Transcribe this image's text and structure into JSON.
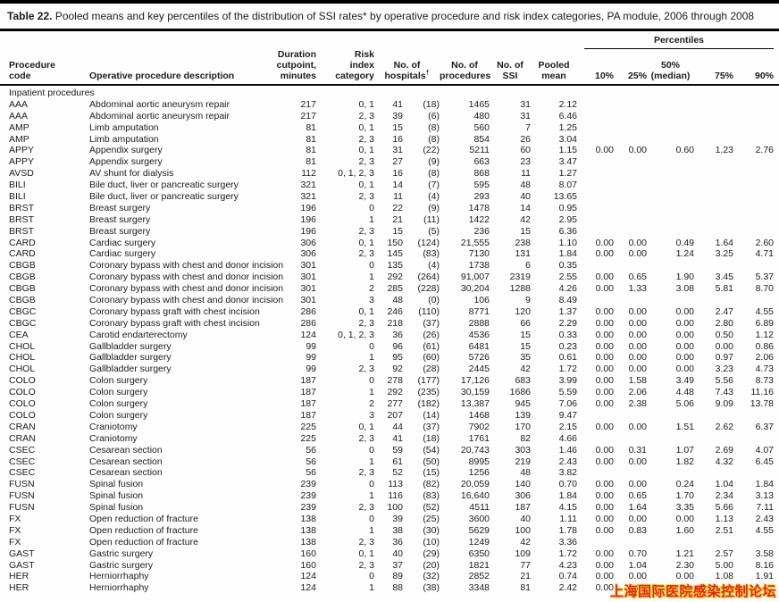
{
  "title": {
    "label": "Table 22.",
    "text": "Pooled means and key percentiles of the distribution of SSI rates* by operative procedure and risk index categories, PA module, 2006 through 2008"
  },
  "header": {
    "percentiles_group": "Percentiles",
    "procedure_code": "Procedure\ncode",
    "description": "Operative procedure description",
    "duration": "Duration\ncutpoint,\nminutes",
    "risk": "Risk\nindex\ncategory",
    "hospitals_line1": "No. of",
    "hospitals_line2": "hospitals",
    "hospitals_dagger": "†",
    "procedures": "No. of\nprocedures",
    "ssi": "No. of\nSSI",
    "pooled_mean": "Pooled\nmean",
    "p10": "10%",
    "p25": "25%",
    "p50": "50%\n(median)",
    "p75": "75%",
    "p90": "90%"
  },
  "section_label": "Inpatient procedures",
  "rows": [
    [
      "AAA",
      "Abdominal aortic aneurysm repair",
      "217",
      "0, 1",
      "41",
      "(18)",
      "1465",
      "31",
      "2.12",
      "",
      "",
      "",
      "",
      ""
    ],
    [
      "AAA",
      "Abdominal aortic aneurysm repair",
      "217",
      "2, 3",
      "39",
      "(6)",
      "480",
      "31",
      "6.46",
      "",
      "",
      "",
      "",
      ""
    ],
    [
      "AMP",
      "Limb amputation",
      "81",
      "0, 1",
      "15",
      "(8)",
      "560",
      "7",
      "1.25",
      "",
      "",
      "",
      "",
      ""
    ],
    [
      "AMP",
      "Limb amputation",
      "81",
      "2, 3",
      "16",
      "(8)",
      "854",
      "26",
      "3.04",
      "",
      "",
      "",
      "",
      ""
    ],
    [
      "APPY",
      "Appendix surgery",
      "81",
      "0, 1",
      "31",
      "(22)",
      "5211",
      "60",
      "1.15",
      "0.00",
      "0.00",
      "0.60",
      "1.23",
      "2.76"
    ],
    [
      "APPY",
      "Appendix surgery",
      "81",
      "2, 3",
      "27",
      "(9)",
      "663",
      "23",
      "3.47",
      "",
      "",
      "",
      "",
      ""
    ],
    [
      "AVSD",
      "AV shunt for dialysis",
      "112",
      "0, 1, 2, 3",
      "16",
      "(8)",
      "868",
      "11",
      "1.27",
      "",
      "",
      "",
      "",
      ""
    ],
    [
      "BILI",
      "Bile duct, liver or pancreatic surgery",
      "321",
      "0, 1",
      "14",
      "(7)",
      "595",
      "48",
      "8.07",
      "",
      "",
      "",
      "",
      ""
    ],
    [
      "BILI",
      "Bile duct, liver or pancreatic surgery",
      "321",
      "2, 3",
      "11",
      "(4)",
      "293",
      "40",
      "13.65",
      "",
      "",
      "",
      "",
      ""
    ],
    [
      "BRST",
      "Breast surgery",
      "196",
      "0",
      "22",
      "(9)",
      "1478",
      "14",
      "0.95",
      "",
      "",
      "",
      "",
      ""
    ],
    [
      "BRST",
      "Breast surgery",
      "196",
      "1",
      "21",
      "(11)",
      "1422",
      "42",
      "2.95",
      "",
      "",
      "",
      "",
      ""
    ],
    [
      "BRST",
      "Breast surgery",
      "196",
      "2, 3",
      "15",
      "(5)",
      "236",
      "15",
      "6.36",
      "",
      "",
      "",
      "",
      ""
    ],
    [
      "CARD",
      "Cardiac surgery",
      "306",
      "0, 1",
      "150",
      "(124)",
      "21,555",
      "238",
      "1.10",
      "0.00",
      "0.00",
      "0.49",
      "1.64",
      "2.60"
    ],
    [
      "CARD",
      "Cardiac surgery",
      "306",
      "2, 3",
      "145",
      "(83)",
      "7130",
      "131",
      "1.84",
      "0.00",
      "0.00",
      "1.24",
      "3.25",
      "4.71"
    ],
    [
      "CBGB",
      "Coronary bypass with chest and donor incision",
      "301",
      "0",
      "135",
      "(4)",
      "1738",
      "6",
      "0.35",
      "",
      "",
      "",
      "",
      ""
    ],
    [
      "CBGB",
      "Coronary bypass with chest and donor incision",
      "301",
      "1",
      "292",
      "(264)",
      "91,007",
      "2319",
      "2.55",
      "0.00",
      "0.65",
      "1.90",
      "3.45",
      "5.37"
    ],
    [
      "CBGB",
      "Coronary bypass with chest and donor incision",
      "301",
      "2",
      "285",
      "(228)",
      "30,204",
      "1288",
      "4.26",
      "0.00",
      "1.33",
      "3.08",
      "5.81",
      "8.70"
    ],
    [
      "CBGB",
      "Coronary bypass with chest and donor incision",
      "301",
      "3",
      "48",
      "(0)",
      "106",
      "9",
      "8.49",
      "",
      "",
      "",
      "",
      ""
    ],
    [
      "CBGC",
      "Coronary bypass graft with chest incision",
      "286",
      "0, 1",
      "246",
      "(110)",
      "8771",
      "120",
      "1.37",
      "0.00",
      "0.00",
      "0.00",
      "2.47",
      "4.55"
    ],
    [
      "CBGC",
      "Coronary bypass graft with chest incision",
      "286",
      "2, 3",
      "218",
      "(37)",
      "2888",
      "66",
      "2.29",
      "0.00",
      "0.00",
      "0.00",
      "2.80",
      "6.89"
    ],
    [
      "CEA",
      "Carotid endarterectomy",
      "124",
      "0, 1, 2, 3",
      "36",
      "(26)",
      "4536",
      "15",
      "0.33",
      "0.00",
      "0.00",
      "0.00",
      "0.50",
      "1.12"
    ],
    [
      "CHOL",
      "Gallbladder surgery",
      "99",
      "0",
      "96",
      "(61)",
      "6481",
      "15",
      "0.23",
      "0.00",
      "0.00",
      "0.00",
      "0.00",
      "0.86"
    ],
    [
      "CHOL",
      "Gallbladder surgery",
      "99",
      "1",
      "95",
      "(60)",
      "5726",
      "35",
      "0.61",
      "0.00",
      "0.00",
      "0.00",
      "0.97",
      "2.06"
    ],
    [
      "CHOL",
      "Gallbladder surgery",
      "99",
      "2, 3",
      "92",
      "(28)",
      "2445",
      "42",
      "1.72",
      "0.00",
      "0.00",
      "0.00",
      "3.23",
      "4.73"
    ],
    [
      "COLO",
      "Colon surgery",
      "187",
      "0",
      "278",
      "(177)",
      "17,126",
      "683",
      "3.99",
      "0.00",
      "1.58",
      "3.49",
      "5.56",
      "8.73"
    ],
    [
      "COLO",
      "Colon surgery",
      "187",
      "1",
      "292",
      "(235)",
      "30,159",
      "1686",
      "5.59",
      "0.00",
      "2.06",
      "4.48",
      "7.43",
      "11.16"
    ],
    [
      "COLO",
      "Colon surgery",
      "187",
      "2",
      "277",
      "(182)",
      "13,387",
      "945",
      "7.06",
      "0.00",
      "2.38",
      "5.06",
      "9.09",
      "13.78"
    ],
    [
      "COLO",
      "Colon surgery",
      "187",
      "3",
      "207",
      "(14)",
      "1468",
      "139",
      "9.47",
      "",
      "",
      "",
      "",
      ""
    ],
    [
      "CRAN",
      "Craniotomy",
      "225",
      "0, 1",
      "44",
      "(37)",
      "7902",
      "170",
      "2.15",
      "0.00",
      "0.00",
      "1.51",
      "2.62",
      "6.37"
    ],
    [
      "CRAN",
      "Craniotomy",
      "225",
      "2, 3",
      "41",
      "(18)",
      "1761",
      "82",
      "4.66",
      "",
      "",
      "",
      "",
      ""
    ],
    [
      "CSEC",
      "Cesarean section",
      "56",
      "0",
      "59",
      "(54)",
      "20,743",
      "303",
      "1.46",
      "0.00",
      "0.31",
      "1.07",
      "2.69",
      "4.07"
    ],
    [
      "CSEC",
      "Cesarean section",
      "56",
      "1",
      "61",
      "(50)",
      "8995",
      "219",
      "2.43",
      "0.00",
      "0.00",
      "1.82",
      "4.32",
      "6.45"
    ],
    [
      "CSEC",
      "Cesarean section",
      "56",
      "2, 3",
      "52",
      "(15)",
      "1256",
      "48",
      "3.82",
      "",
      "",
      "",
      "",
      ""
    ],
    [
      "FUSN",
      "Spinal fusion",
      "239",
      "0",
      "113",
      "(82)",
      "20,059",
      "140",
      "0.70",
      "0.00",
      "0.00",
      "0.24",
      "1.04",
      "1.84"
    ],
    [
      "FUSN",
      "Spinal fusion",
      "239",
      "1",
      "116",
      "(83)",
      "16,640",
      "306",
      "1.84",
      "0.00",
      "0.65",
      "1.70",
      "2.34",
      "3.13"
    ],
    [
      "FUSN",
      "Spinal fusion",
      "239",
      "2, 3",
      "100",
      "(52)",
      "4511",
      "187",
      "4.15",
      "0.00",
      "1.64",
      "3.35",
      "5.66",
      "7.11"
    ],
    [
      "FX",
      "Open reduction of fracture",
      "138",
      "0",
      "39",
      "(25)",
      "3600",
      "40",
      "1.11",
      "0.00",
      "0.00",
      "0.00",
      "1.13",
      "2.43"
    ],
    [
      "FX",
      "Open reduction of fracture",
      "138",
      "1",
      "38",
      "(30)",
      "5629",
      "100",
      "1.78",
      "0.00",
      "0.83",
      "1.60",
      "2.51",
      "4.55"
    ],
    [
      "FX",
      "Open reduction of fracture",
      "138",
      "2, 3",
      "36",
      "(10)",
      "1249",
      "42",
      "3.36",
      "",
      "",
      "",
      "",
      ""
    ],
    [
      "GAST",
      "Gastric surgery",
      "160",
      "0, 1",
      "40",
      "(29)",
      "6350",
      "109",
      "1.72",
      "0.00",
      "0.70",
      "1.21",
      "2.57",
      "3.58"
    ],
    [
      "GAST",
      "Gastric surgery",
      "160",
      "2, 3",
      "37",
      "(20)",
      "1821",
      "77",
      "4.23",
      "0.00",
      "1.04",
      "2.30",
      "5.00",
      "8.16"
    ],
    [
      "HER",
      "Herniorrhaphy",
      "124",
      "0",
      "89",
      "(32)",
      "2852",
      "21",
      "0.74",
      "0.00",
      "0.00",
      "0.00",
      "1.08",
      "1.91"
    ],
    [
      "HER",
      "Herniorrhaphy",
      "124",
      "1",
      "88",
      "(38)",
      "3348",
      "81",
      "2.42",
      "0.00",
      "0.00",
      "",
      "",
      ""
    ]
  ],
  "watermark": {
    "text": "上海国际医院感染控制论坛",
    "color": "#e02318",
    "outline_color": "#ffd73c"
  }
}
